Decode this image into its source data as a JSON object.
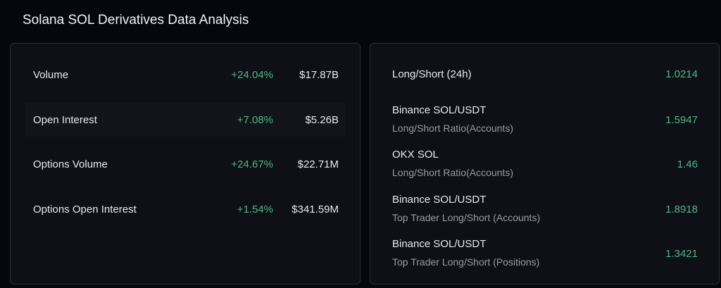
{
  "title": "Solana SOL Derivatives Data Analysis",
  "colors": {
    "positive": "#4fb68a",
    "background": "#06070c",
    "panel": "#0e1015"
  },
  "left_panel": {
    "rows": [
      {
        "label": "Volume",
        "change": "+24.04%",
        "value": "$17.87B"
      },
      {
        "label": "Open Interest",
        "change": "+7.08%",
        "value": "$5.26B"
      },
      {
        "label": "Options Volume",
        "change": "+24.67%",
        "value": "$22.71M"
      },
      {
        "label": "Options Open Interest",
        "change": "+1.54%",
        "value": "$341.59M"
      }
    ]
  },
  "right_panel": {
    "rows": [
      {
        "label": "Long/Short (24h)",
        "value": "1.0214"
      },
      {
        "label": "Binance SOL/USDT",
        "sub": "Long/Short Ratio(Accounts)",
        "value": "1.5947"
      },
      {
        "label": "OKX SOL",
        "sub": "Long/Short Ratio(Accounts)",
        "value": "1.46"
      },
      {
        "label": "Binance SOL/USDT",
        "sub": "Top Trader Long/Short (Accounts)",
        "value": "1.8918"
      },
      {
        "label": "Binance SOL/USDT",
        "sub": "Top Trader Long/Short (Positions)",
        "value": "1.3421"
      }
    ]
  }
}
